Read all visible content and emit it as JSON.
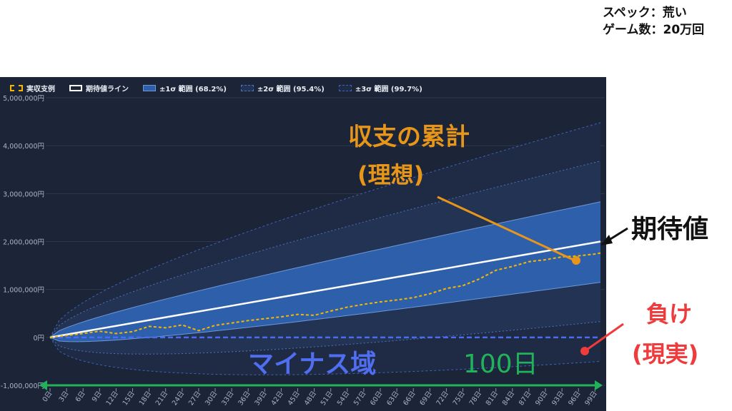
{
  "spec": {
    "line1": "スペック：荒い",
    "line2": "ゲーム数：20万回"
  },
  "legend": [
    {
      "label": "実収支例",
      "style": "actual"
    },
    {
      "label": "期待値ライン",
      "style": "expected"
    },
    {
      "label": "±1σ 範囲 (68.2%)",
      "style": "sigma1"
    },
    {
      "label": "±2σ 範囲 (95.4%)",
      "style": "sigma2"
    },
    {
      "label": "±3σ 範囲 (99.7%)",
      "style": "sigma3"
    }
  ],
  "annotations": {
    "actual_title": "収支の累計",
    "actual_sub": "(理想)",
    "expected": "期待値",
    "loss_title": "負け",
    "loss_sub": "(現実)",
    "minus_zone": "マイナス域",
    "days": "100日"
  },
  "colors": {
    "panel_bg": "#1c2537",
    "actual": "#f5b800",
    "expected": "#ffffff",
    "sigma1": "#2e5faa",
    "sigma2": "#233354",
    "sigma3": "#1f2a44",
    "zero_line": "#4a6cf0",
    "annotation_orange": "#e8961a",
    "annotation_red": "#ef3b3b",
    "annotation_blue": "#4f6ef0",
    "annotation_green": "#22b35a"
  },
  "chart_data": {
    "type": "line",
    "ylim": [
      -1000000,
      5000000
    ],
    "yticks": [
      -1000000,
      0,
      1000000,
      2000000,
      3000000,
      4000000,
      5000000
    ],
    "ytick_labels": [
      "-1,000,000円",
      "0円",
      "1,000,000円",
      "2,000,000円",
      "3,000,000円",
      "4,000,000円",
      "5,000,000円"
    ],
    "xlim": [
      0,
      100
    ],
    "xticks": [
      0,
      3,
      6,
      9,
      12,
      15,
      18,
      21,
      24,
      27,
      30,
      33,
      36,
      39,
      42,
      45,
      48,
      51,
      54,
      57,
      60,
      63,
      66,
      69,
      72,
      75,
      78,
      81,
      84,
      87,
      90,
      93,
      96,
      99
    ],
    "xtick_labels": [
      "0日",
      "3日",
      "6日",
      "9日",
      "12日",
      "15日",
      "18日",
      "21日",
      "24日",
      "27日",
      "30日",
      "33日",
      "36日",
      "39日",
      "42日",
      "45日",
      "48日",
      "51日",
      "54日",
      "57日",
      "60日",
      "63日",
      "66日",
      "69日",
      "72日",
      "75日",
      "78日",
      "81日",
      "84日",
      "87日",
      "90日",
      "93日",
      "96日",
      "99日"
    ],
    "expected": {
      "start": 0,
      "end": 2000000
    },
    "bands": {
      "sigma1": {
        "upper_end": 2830000,
        "lower_end": 1150000
      },
      "sigma2": {
        "upper_end": 3680000,
        "lower_end": 330000
      },
      "sigma3": {
        "upper_end": 4480000,
        "lower_end": -500000
      }
    },
    "series": [
      {
        "name": "実収支例",
        "x": [
          0,
          3,
          6,
          9,
          12,
          15,
          18,
          21,
          24,
          27,
          30,
          33,
          36,
          39,
          42,
          45,
          48,
          51,
          54,
          57,
          60,
          63,
          66,
          69,
          72,
          75,
          78,
          81,
          84,
          87,
          90,
          93,
          96,
          99,
          100
        ],
        "values": [
          0,
          40000,
          80000,
          130000,
          80000,
          120000,
          230000,
          200000,
          260000,
          140000,
          250000,
          300000,
          350000,
          390000,
          430000,
          480000,
          460000,
          550000,
          630000,
          690000,
          740000,
          780000,
          830000,
          910000,
          1020000,
          1080000,
          1220000,
          1400000,
          1480000,
          1580000,
          1620000,
          1680000,
          1700000,
          1740000,
          1760000
        ]
      }
    ]
  }
}
